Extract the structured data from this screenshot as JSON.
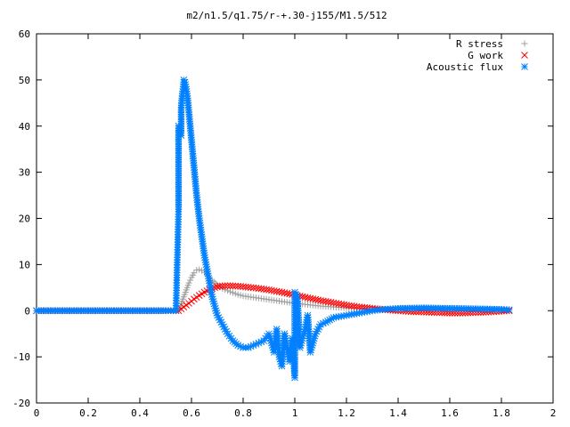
{
  "chart_data": {
    "type": "scatter",
    "title": "m2/n1.5/q1.75/r-+.30-j155/M1.5/512",
    "xlabel": "",
    "ylabel": "",
    "xlim": [
      0,
      2
    ],
    "ylim": [
      -20,
      60
    ],
    "x_ticks": [
      "0",
      "0.2",
      "0.4",
      "0.6",
      "0.8",
      "1",
      "1.2",
      "1.4",
      "1.6",
      "1.8",
      "2"
    ],
    "y_ticks": [
      "-20",
      "-10",
      "0",
      "10",
      "20",
      "30",
      "40",
      "50",
      "60"
    ],
    "grid": false,
    "legend_position": "top-right",
    "series": [
      {
        "name": "R stress",
        "marker": "plus",
        "color": "#a0a0a0",
        "x": [
          0.0,
          0.1,
          0.2,
          0.3,
          0.4,
          0.5,
          0.55,
          0.56,
          0.57,
          0.58,
          0.59,
          0.6,
          0.61,
          0.62,
          0.63,
          0.64,
          0.65,
          0.66,
          0.67,
          0.68,
          0.7,
          0.72,
          0.75,
          0.78,
          0.8,
          0.85,
          0.9,
          0.95,
          1.0,
          1.05,
          1.1,
          1.15,
          1.2,
          1.25,
          1.3,
          1.4,
          1.5,
          1.6,
          1.7,
          1.8,
          1.83
        ],
        "y": [
          0,
          0,
          0,
          0,
          0,
          0,
          0,
          1.5,
          3,
          4.5,
          6,
          7.2,
          8.2,
          8.8,
          8.9,
          8.7,
          8.3,
          7.8,
          7.2,
          6.6,
          5.6,
          4.8,
          4.1,
          3.5,
          3.2,
          2.8,
          2.4,
          2.0,
          1.6,
          1.3,
          1.0,
          0.8,
          0.6,
          0.5,
          0.4,
          0.3,
          0.3,
          0.3,
          0.3,
          0.2,
          0.2
        ]
      },
      {
        "name": "G work",
        "marker": "cross",
        "color": "#ff0000",
        "x": [
          0.0,
          0.1,
          0.2,
          0.3,
          0.4,
          0.5,
          0.55,
          0.57,
          0.59,
          0.61,
          0.63,
          0.65,
          0.67,
          0.69,
          0.71,
          0.73,
          0.75,
          0.78,
          0.8,
          0.85,
          0.9,
          0.95,
          1.0,
          1.05,
          1.1,
          1.15,
          1.2,
          1.25,
          1.3,
          1.35,
          1.4,
          1.45,
          1.5,
          1.55,
          1.6,
          1.65,
          1.7,
          1.75,
          1.8,
          1.83
        ],
        "y": [
          0,
          0,
          0,
          0,
          0,
          0,
          0,
          0.8,
          1.6,
          2.5,
          3.3,
          4.0,
          4.6,
          5.0,
          5.3,
          5.4,
          5.4,
          5.3,
          5.2,
          4.9,
          4.5,
          4.0,
          3.4,
          2.8,
          2.2,
          1.7,
          1.2,
          0.8,
          0.5,
          0.2,
          0.0,
          -0.2,
          -0.3,
          -0.4,
          -0.5,
          -0.5,
          -0.4,
          -0.3,
          -0.1,
          0.0
        ]
      },
      {
        "name": "Acoustic flux",
        "marker": "star",
        "color": "#0080ff",
        "x": [
          0.0,
          0.1,
          0.2,
          0.3,
          0.4,
          0.5,
          0.54,
          0.55,
          0.55,
          0.56,
          0.56,
          0.565,
          0.57,
          0.57,
          0.575,
          0.58,
          0.585,
          0.59,
          0.595,
          0.6,
          0.605,
          0.61,
          0.615,
          0.62,
          0.63,
          0.64,
          0.65,
          0.66,
          0.67,
          0.68,
          0.69,
          0.7,
          0.72,
          0.74,
          0.76,
          0.78,
          0.8,
          0.82,
          0.84,
          0.86,
          0.88,
          0.9,
          0.92,
          0.93,
          0.94,
          0.95,
          0.96,
          0.97,
          0.98,
          0.99,
          1.0,
          1.0,
          1.01,
          1.02,
          1.03,
          1.04,
          1.05,
          1.06,
          1.08,
          1.1,
          1.12,
          1.15,
          1.2,
          1.25,
          1.3,
          1.35,
          1.4,
          1.5,
          1.6,
          1.7,
          1.8,
          1.83
        ],
        "y": [
          0,
          0,
          0,
          0,
          0,
          0,
          0,
          22,
          40,
          38,
          44,
          47,
          49,
          50,
          49.5,
          48,
          46,
          43,
          40,
          37,
          34,
          31,
          28,
          25,
          20,
          16,
          12,
          9,
          6,
          3,
          1,
          -1,
          -3,
          -5,
          -6.5,
          -7.5,
          -8,
          -8,
          -7.5,
          -7,
          -6.5,
          -5,
          -9,
          -4,
          -10,
          -12,
          -5,
          -8,
          -11,
          -6,
          -14.5,
          4,
          3,
          -8,
          -6,
          -4,
          -1,
          -9,
          -5,
          -3,
          -2.5,
          -1.5,
          -1,
          -0.5,
          0,
          0.3,
          0.5,
          0.6,
          0.5,
          0.4,
          0.3,
          0.2
        ]
      }
    ]
  }
}
